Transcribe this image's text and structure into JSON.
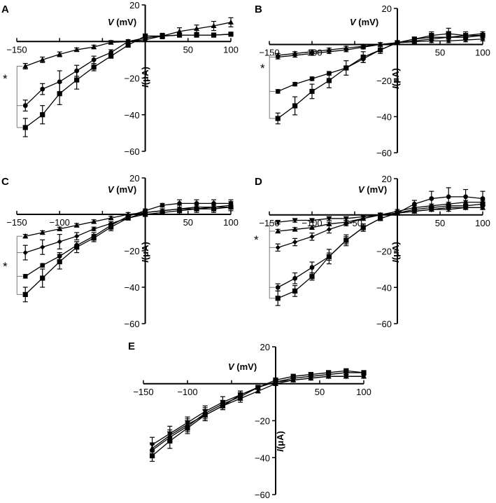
{
  "chart_data": [
    {
      "panel": "A",
      "type": "line",
      "xlabel_var": "V",
      "xlabel_unit": " (mV)",
      "ylabel_var": "I",
      "ylabel_unit": "(μA)",
      "xlim": [
        -150,
        100
      ],
      "ylim": [
        -60,
        20
      ],
      "xticks": [
        -150,
        50,
        100
      ],
      "yticks": [
        20,
        -20,
        -40,
        -60
      ],
      "x": [
        -140,
        -120,
        -100,
        -80,
        -60,
        -40,
        -20,
        0,
        20,
        40,
        60,
        80,
        100
      ],
      "series": [
        {
          "marker": "triangle",
          "values": [
            -13.5,
            -10,
            -7,
            -4.5,
            -3,
            -0.5,
            0,
            1,
            3,
            5.5,
            7,
            8.5,
            10.5
          ],
          "errors": [
            1.5,
            1.5,
            1.3,
            1,
            1,
            1,
            0.8,
            1,
            1.5,
            2,
            2,
            2.5,
            2.5
          ]
        },
        {
          "marker": "circle",
          "values": [
            -35,
            -26,
            -22,
            -16,
            -10,
            -6,
            0,
            2,
            3,
            3.5,
            3.5,
            3.5,
            4
          ],
          "errors": [
            3,
            3,
            6,
            3,
            2,
            1.5,
            1,
            1,
            1,
            1,
            1,
            1,
            1
          ]
        },
        {
          "marker": "square",
          "values": [
            -47,
            -40,
            -28.5,
            -21,
            -14,
            -8,
            -2,
            3,
            3,
            3.5,
            3.5,
            3.5,
            4
          ],
          "errors": [
            5,
            5,
            6,
            5,
            2,
            1,
            1,
            1,
            1,
            1,
            1,
            1,
            1
          ]
        }
      ],
      "annotation": "*"
    },
    {
      "panel": "B",
      "type": "line",
      "xlabel_var": "V",
      "xlabel_unit": " (mV)",
      "ylabel_var": "I",
      "ylabel_unit": "(μA)",
      "xlim": [
        -150,
        100
      ],
      "ylim": [
        -60,
        20
      ],
      "xticks": [
        -150,
        -100,
        50,
        100
      ],
      "yticks": [
        20,
        -20,
        -40,
        -60
      ],
      "x": [
        -140,
        -120,
        -100,
        -80,
        -60,
        -40,
        -20,
        0,
        20,
        40,
        60,
        80,
        100
      ],
      "series": [
        {
          "marker": "triangle",
          "values": [
            -6,
            -5,
            -4,
            -3,
            -2,
            -1,
            0,
            1,
            2,
            3,
            4,
            5,
            6
          ],
          "errors": [
            1,
            1,
            1,
            1,
            1,
            1,
            1,
            1,
            1,
            1,
            1,
            1,
            1
          ]
        },
        {
          "marker": "diamond",
          "values": [
            -7,
            -6,
            -5,
            -4,
            -3,
            -1.5,
            0,
            1,
            1.5,
            2,
            2,
            2.5,
            3
          ],
          "errors": [
            1,
            1,
            1,
            1,
            1,
            1,
            1,
            1,
            1,
            1,
            1,
            1,
            1
          ]
        },
        {
          "marker": "circle",
          "values": [
            -26,
            -22,
            -19,
            -16,
            -13,
            -8,
            -3,
            1,
            3,
            4,
            4,
            4,
            5
          ],
          "errors": [
            1,
            1,
            1,
            1,
            1,
            2,
            1,
            1,
            1,
            2,
            2,
            1,
            1
          ]
        },
        {
          "marker": "square",
          "values": [
            -41,
            -34,
            -26,
            -20,
            -13,
            -7,
            -3,
            1,
            3,
            5,
            6,
            5,
            5
          ],
          "errors": [
            3,
            5,
            4,
            4,
            4,
            3,
            2,
            1,
            1,
            2,
            3,
            2,
            1
          ]
        }
      ],
      "annotation": "*"
    },
    {
      "panel": "C",
      "type": "line",
      "xlabel_var": "V",
      "xlabel_unit": " (mV)",
      "ylabel_var": "I",
      "ylabel_unit": "(μA)",
      "xlim": [
        -150,
        100
      ],
      "ylim": [
        -60,
        20
      ],
      "xticks": [
        -150,
        -100,
        50,
        100
      ],
      "yticks": [
        20,
        -20,
        -40,
        -60
      ],
      "x": [
        -140,
        -120,
        -100,
        -80,
        -60,
        -40,
        -20,
        0,
        20,
        40,
        60,
        80,
        100
      ],
      "series": [
        {
          "marker": "triangle",
          "values": [
            -12,
            -10,
            -8,
            -6,
            -4,
            -2,
            0,
            1,
            2,
            3,
            3,
            4,
            4
          ],
          "errors": [
            1,
            1,
            1,
            1,
            1,
            1,
            1,
            1,
            1,
            1,
            1,
            1,
            1
          ]
        },
        {
          "marker": "diamond",
          "values": [
            -21,
            -18,
            -15,
            -12,
            -8,
            -5,
            -2,
            1,
            2,
            3,
            4,
            4,
            5
          ],
          "errors": [
            4,
            4,
            4,
            2,
            1,
            1,
            1,
            1,
            1,
            2,
            2,
            2,
            2
          ]
        },
        {
          "marker": "circle",
          "values": [
            -34,
            -28,
            -23,
            -17,
            -12,
            -6,
            -1,
            2,
            5,
            6,
            6,
            6,
            6
          ],
          "errors": [
            1,
            1,
            2,
            2,
            2,
            1,
            1,
            1,
            1,
            2,
            2,
            2,
            2
          ]
        },
        {
          "marker": "square",
          "values": [
            -44,
            -35,
            -26,
            -18,
            -13,
            -7,
            -2,
            0,
            1,
            2,
            3,
            3,
            4
          ],
          "errors": [
            4,
            5,
            4,
            3,
            2,
            2,
            1,
            1,
            1,
            2,
            2,
            2,
            2
          ]
        }
      ],
      "annotation": "*"
    },
    {
      "panel": "D",
      "type": "line",
      "xlabel_var": "V",
      "xlabel_unit": " (mV)",
      "ylabel_var": "I",
      "ylabel_unit": "(μA)",
      "xlim": [
        -150,
        100
      ],
      "ylim": [
        -60,
        20
      ],
      "xticks": [
        -150,
        -100,
        -50,
        50,
        100
      ],
      "yticks": [
        20,
        -20,
        -40,
        -60
      ],
      "x": [
        -140,
        -120,
        -100,
        -80,
        -60,
        -40,
        -20,
        0,
        20,
        40,
        60,
        80,
        100
      ],
      "series": [
        {
          "marker": "triangle-down",
          "values": [
            -4,
            -3,
            -3,
            -2,
            -2,
            -1,
            0,
            1,
            2,
            3,
            3,
            4,
            4
          ],
          "errors": [
            1,
            1,
            1,
            1,
            1,
            1,
            1,
            1,
            1,
            1,
            1,
            1,
            1
          ]
        },
        {
          "marker": "triangle",
          "values": [
            -9,
            -8,
            -7,
            -5,
            -4,
            -2,
            0,
            1,
            2,
            3,
            4,
            4,
            4
          ],
          "errors": [
            1,
            1,
            1,
            1,
            1,
            1,
            1,
            1,
            1,
            1,
            1,
            1,
            1
          ]
        },
        {
          "marker": "diamond",
          "values": [
            -18,
            -15,
            -12,
            -8,
            -5,
            -2,
            0,
            2,
            4,
            5,
            6,
            7,
            7
          ],
          "errors": [
            2,
            2,
            2,
            2,
            1,
            1,
            1,
            1,
            1,
            1,
            1,
            1,
            1
          ]
        },
        {
          "marker": "circle",
          "values": [
            -40,
            -35,
            -29,
            -23,
            -14,
            -7,
            -2,
            1,
            6,
            9,
            10,
            10,
            9
          ],
          "errors": [
            2,
            3,
            3,
            4,
            3,
            2,
            1,
            1,
            2,
            4,
            5,
            4,
            4
          ]
        },
        {
          "marker": "square",
          "values": [
            -46,
            -42,
            -34,
            -23,
            -14,
            -7,
            -2,
            1,
            3,
            4,
            5,
            5,
            6
          ],
          "errors": [
            4,
            3,
            2,
            2,
            2,
            2,
            1,
            1,
            1,
            1,
            1,
            1,
            1
          ]
        }
      ],
      "annotation": "*"
    },
    {
      "panel": "E",
      "type": "line",
      "xlabel_var": "V",
      "xlabel_unit": " (mV)",
      "ylabel_var": "I",
      "ylabel_unit": "(μA)",
      "xlim": [
        -150,
        100
      ],
      "ylim": [
        -60,
        20
      ],
      "xticks": [
        -150,
        -100,
        50,
        100
      ],
      "yticks": [
        20,
        -20,
        -40,
        -60
      ],
      "x": [
        -140,
        -120,
        -100,
        -80,
        -60,
        -40,
        -20,
        0,
        20,
        40,
        60,
        80,
        100
      ],
      "series": [
        {
          "marker": "triangle-down",
          "values": [
            -33,
            -27,
            -21,
            -15,
            -10,
            -6,
            -2,
            1,
            2,
            3,
            4,
            4,
            4
          ],
          "errors": [
            4,
            4,
            3,
            3,
            3,
            2,
            1,
            1,
            1,
            1,
            1,
            1,
            1
          ]
        },
        {
          "marker": "triangle",
          "values": [
            -35,
            -28,
            -22,
            -17,
            -12,
            -8,
            -4,
            0,
            2,
            3,
            4,
            4,
            4
          ],
          "errors": [
            3,
            3,
            3,
            3,
            2,
            2,
            1,
            1,
            1,
            1,
            1,
            1,
            1
          ]
        },
        {
          "marker": "circle",
          "values": [
            -36,
            -29,
            -23,
            -16,
            -11,
            -7,
            -2,
            1,
            3,
            4,
            5,
            6,
            6
          ],
          "errors": [
            3,
            3,
            3,
            3,
            2,
            2,
            1,
            1,
            1,
            1,
            1,
            1,
            1
          ]
        },
        {
          "marker": "square",
          "values": [
            -39,
            -31,
            -24,
            -17,
            -12,
            -6,
            -2,
            2,
            4,
            5,
            6,
            7,
            6
          ],
          "errors": [
            3,
            4,
            3,
            3,
            2,
            2,
            1,
            1,
            1,
            1,
            1,
            1,
            1
          ]
        }
      ],
      "annotation": ""
    }
  ]
}
